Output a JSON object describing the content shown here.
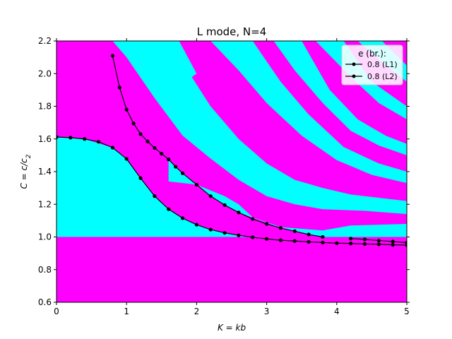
{
  "chart_data": {
    "type": "line",
    "title": "L mode, N=4",
    "xlabel": "K = kb",
    "ylabel": "C = c/c2",
    "xlim": [
      0,
      5
    ],
    "ylim": [
      0.6,
      2.2
    ],
    "xticks": [
      "0",
      "1",
      "2",
      "3",
      "4",
      "5"
    ],
    "yticks": [
      "0.6",
      "0.8",
      "1.0",
      "1.2",
      "1.4",
      "1.6",
      "1.8",
      "2.0",
      "2.2"
    ],
    "legend": {
      "title": "e (br.):",
      "position": "top-right",
      "entries": [
        "0.8 (L1)",
        "0.8 (L2)"
      ]
    },
    "background_regions": {
      "colors": {
        "magenta": "#ff00ff",
        "cyan": "#00ffff"
      },
      "description": "magenta/cyan banded map over the plot area; region below C=1.0 is magenta"
    },
    "series": [
      {
        "name": "0.8 (L1)",
        "x": [
          0.0,
          0.2,
          0.4,
          0.6,
          0.8,
          1.0,
          1.2,
          1.4,
          1.6,
          1.8,
          2.0,
          2.2,
          2.4,
          2.6,
          2.8,
          3.0,
          3.2,
          3.4,
          3.6,
          3.8,
          4.0,
          4.2,
          4.4,
          4.6,
          4.8,
          5.0
        ],
        "y": [
          1.612,
          1.608,
          1.6,
          1.583,
          1.547,
          1.478,
          1.36,
          1.25,
          1.17,
          1.115,
          1.075,
          1.045,
          1.025,
          1.01,
          0.998,
          0.988,
          0.98,
          0.975,
          0.97,
          0.966,
          0.962,
          0.96,
          0.957,
          0.955,
          0.952,
          0.95
        ]
      },
      {
        "name": "0.8 (L2)",
        "x": [
          0.8,
          0.9,
          1.0,
          1.1,
          1.2,
          1.3,
          1.4,
          1.5,
          1.6,
          1.7,
          1.8,
          2.0,
          2.2,
          2.4,
          2.6,
          2.8,
          3.0,
          3.2,
          3.4,
          3.6,
          3.8,
          4.2,
          4.4,
          4.6,
          4.8,
          5.0
        ],
        "y": [
          2.11,
          1.915,
          1.78,
          1.695,
          1.63,
          1.585,
          1.545,
          1.51,
          1.475,
          1.43,
          1.39,
          1.32,
          1.25,
          1.195,
          1.15,
          1.11,
          1.08,
          1.055,
          1.035,
          1.015,
          1.0,
          0.99,
          0.985,
          0.978,
          0.972,
          0.965
        ]
      }
    ]
  }
}
